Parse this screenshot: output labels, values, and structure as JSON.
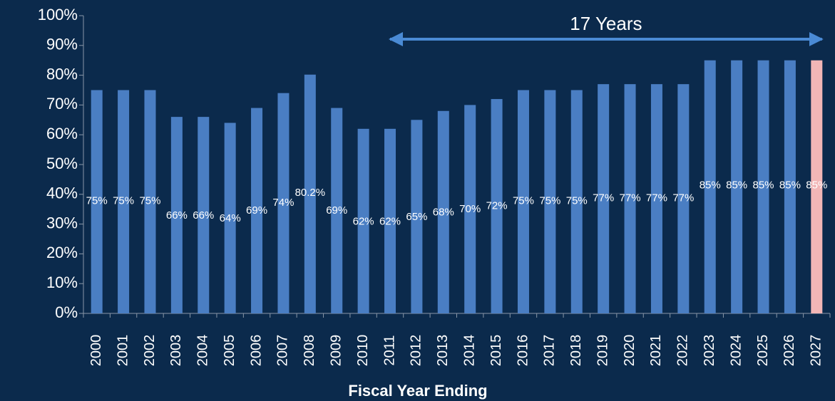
{
  "chart_data": {
    "type": "bar",
    "x_label": "Fiscal Year Ending",
    "annotation": "17 Years",
    "categories": [
      "2000",
      "2001",
      "2002",
      "2003",
      "2004",
      "2005",
      "2006",
      "2007",
      "2008",
      "2009",
      "2010",
      "2011",
      "2012",
      "2013",
      "2014",
      "2015",
      "2016",
      "2017",
      "2018",
      "2019",
      "2020",
      "2021",
      "2022",
      "2023",
      "2024",
      "2025",
      "2026",
      "2027"
    ],
    "values": [
      75,
      75,
      75,
      66,
      66,
      64,
      69,
      74,
      80.2,
      69,
      62,
      62,
      65,
      68,
      70,
      72,
      75,
      75,
      75,
      77,
      77,
      77,
      77,
      85,
      85,
      85,
      85,
      85
    ],
    "value_labels": [
      "75%",
      "75%",
      "75%",
      "66%",
      "66%",
      "64%",
      "69%",
      "74%",
      "80.2%",
      "69%",
      "62%",
      "62%",
      "65%",
      "68%",
      "70%",
      "72%",
      "75%",
      "75%",
      "75%",
      "77%",
      "77%",
      "77%",
      "77%",
      "85%",
      "85%",
      "85%",
      "85%",
      "85%"
    ],
    "colors": [
      "#4a7ec3",
      "#4a7ec3",
      "#4a7ec3",
      "#4a7ec3",
      "#4a7ec3",
      "#4a7ec3",
      "#4a7ec3",
      "#4a7ec3",
      "#4a7ec3",
      "#4a7ec3",
      "#4a7ec3",
      "#4a7ec3",
      "#4a7ec3",
      "#4a7ec3",
      "#4a7ec3",
      "#4a7ec3",
      "#4a7ec3",
      "#4a7ec3",
      "#4a7ec3",
      "#4a7ec3",
      "#4a7ec3",
      "#4a7ec3",
      "#4a7ec3",
      "#4a7ec3",
      "#4a7ec3",
      "#4a7ec3",
      "#4a7ec3",
      "#f2b6b6"
    ],
    "ylim": [
      0,
      100
    ],
    "yticks": [
      {
        "value": 0,
        "label": "0%"
      },
      {
        "value": 10,
        "label": "10%"
      },
      {
        "value": 20,
        "label": "20%"
      },
      {
        "value": 30,
        "label": "30%"
      },
      {
        "value": 40,
        "label": "40%"
      },
      {
        "value": 50,
        "label": "50%"
      },
      {
        "value": 60,
        "label": "60%"
      },
      {
        "value": 70,
        "label": "70%"
      },
      {
        "value": 80,
        "label": "80%"
      },
      {
        "value": 90,
        "label": "90%"
      },
      {
        "value": 100,
        "label": "100%"
      }
    ],
    "grid": false
  }
}
